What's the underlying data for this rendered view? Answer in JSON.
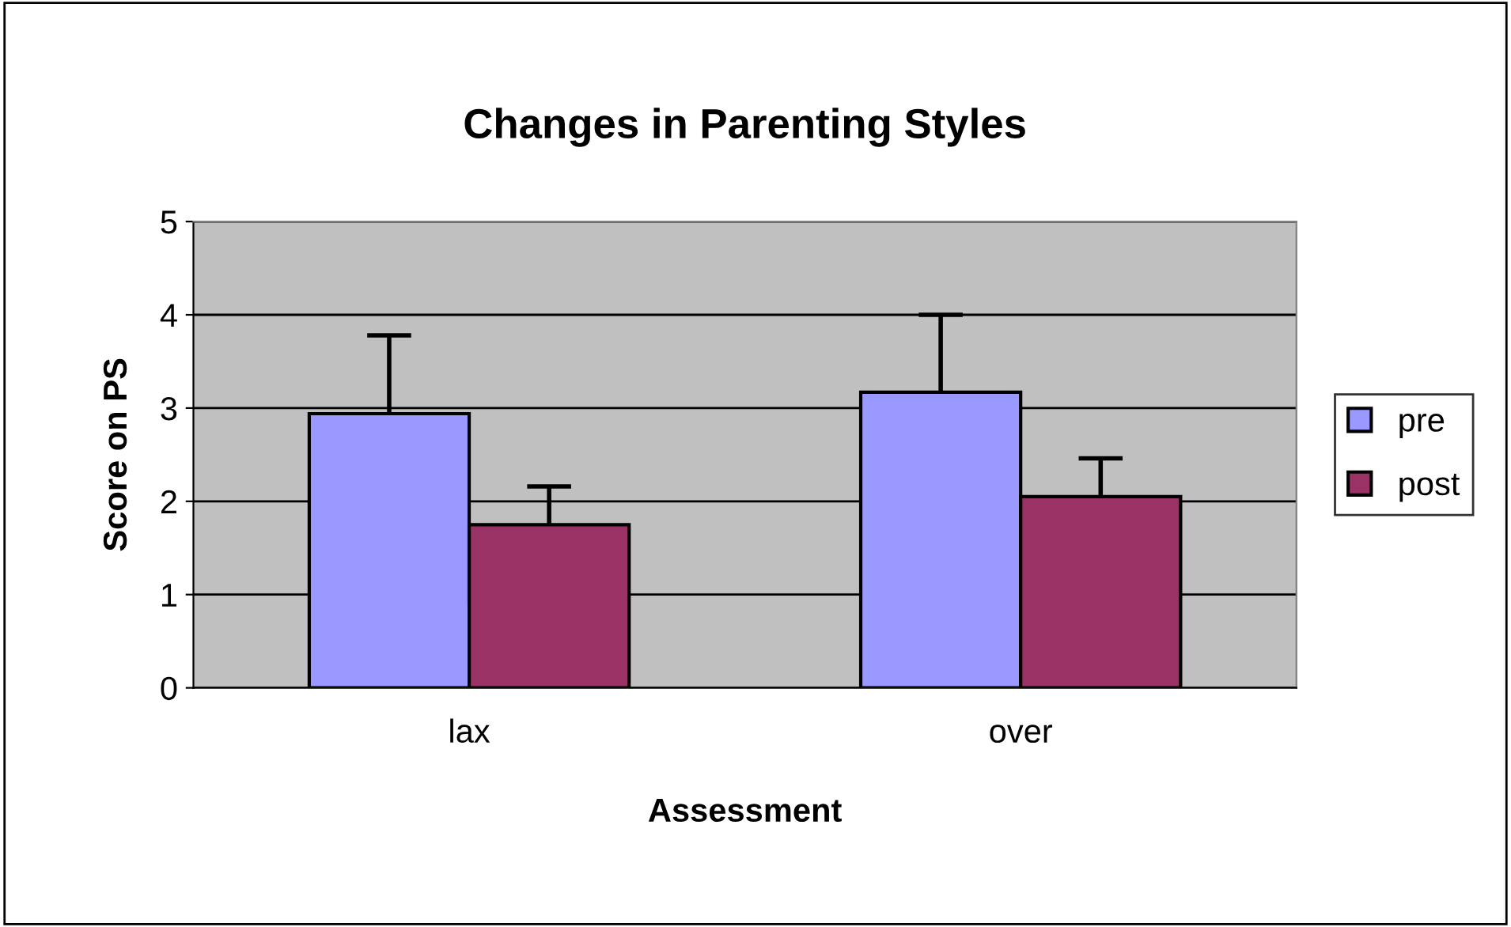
{
  "chart_data": {
    "type": "bar",
    "title": "Changes in Parenting Styles",
    "xlabel": "Assessment",
    "ylabel": "Score on PS",
    "categories": [
      "lax",
      "over"
    ],
    "series": [
      {
        "name": "pre",
        "color": "#9999ff",
        "values": [
          2.94,
          3.17
        ],
        "errors": [
          [
            2.94,
            3.78
          ],
          [
            3.17,
            4.0
          ]
        ]
      },
      {
        "name": "post",
        "color": "#993366",
        "values": [
          1.75,
          2.05
        ],
        "errors": [
          [
            1.75,
            2.16
          ],
          [
            2.05,
            2.46
          ]
        ]
      }
    ],
    "ylim": [
      0,
      5
    ],
    "yticks": [
      0,
      1,
      2,
      3,
      4,
      5
    ],
    "grid": "y",
    "legend": "right"
  }
}
